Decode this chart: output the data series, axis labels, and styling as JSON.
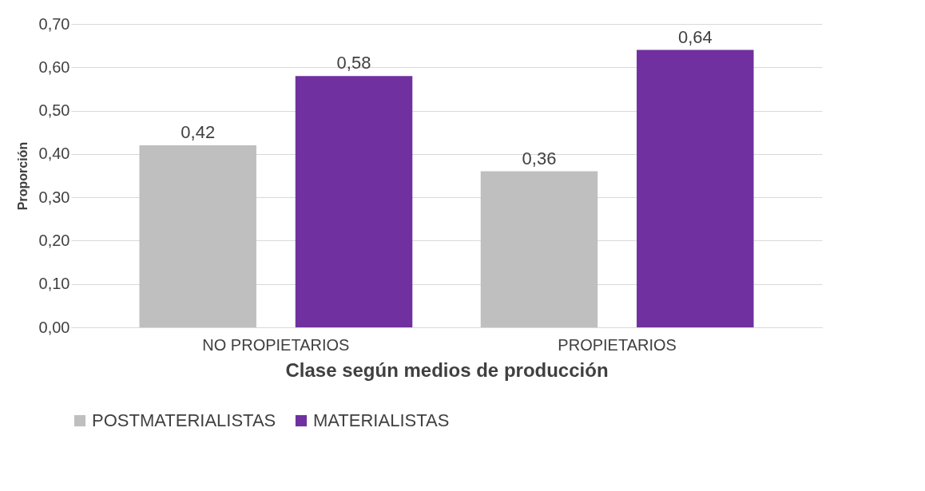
{
  "chart_data": {
    "type": "bar",
    "xlabel": "Clase según medios de producción",
    "ylabel": "Proporción",
    "categories": [
      "NO PROPIETARIOS",
      "PROPIETARIOS"
    ],
    "series": [
      {
        "name": "POSTMATERIALISTAS",
        "color": "#bfbfbf",
        "values": [
          0.42,
          0.36
        ],
        "value_labels": [
          "0,42",
          "0,36"
        ]
      },
      {
        "name": "MATERIALISTAS",
        "color": "#7030a0",
        "values": [
          0.58,
          0.64
        ],
        "value_labels": [
          "0,58",
          "0,64"
        ]
      }
    ],
    "ylim": [
      0,
      0.7
    ],
    "yticks": [
      {
        "value": 0,
        "label": "0,00"
      },
      {
        "value": 0.1,
        "label": "0,10"
      },
      {
        "value": 0.2,
        "label": "0,20"
      },
      {
        "value": 0.3,
        "label": "0,30"
      },
      {
        "value": 0.4,
        "label": "0,40"
      },
      {
        "value": 0.5,
        "label": "0,50"
      },
      {
        "value": 0.6,
        "label": "0,60"
      },
      {
        "value": 0.7,
        "label": "0,70"
      }
    ],
    "grid": "y",
    "legend": "bottom"
  }
}
